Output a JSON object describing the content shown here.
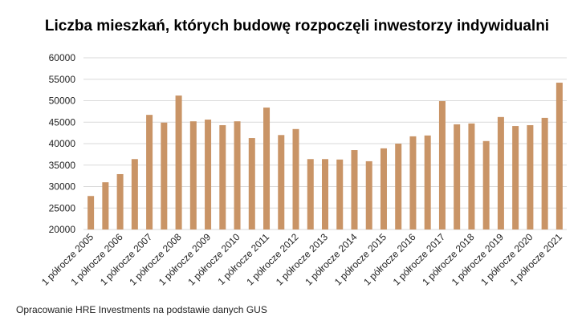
{
  "chart_data": {
    "type": "bar",
    "title": "Liczba mieszkań, których budowę rozpoczęli inwestorzy indywidualni",
    "source": "Opracowanie HRE Investments na podstawie danych GUS",
    "categories": [
      "1 półrocze 2005",
      null,
      "1 półrocze 2006",
      null,
      "1 półrocze 2007",
      null,
      "1 półrocze 2008",
      null,
      "1 półrocze 2009",
      null,
      "1 półrocze 2010",
      null,
      "1 półrocze 2011",
      null,
      "1 półrocze 2012",
      null,
      "1 półrocze 2013",
      null,
      "1 półrocze 2014",
      null,
      "1 półrocze 2015",
      null,
      "1 półrocze 2016",
      null,
      "1 półrocze 2017",
      null,
      "1 półrocze 2018",
      null,
      "1 półrocze 2019",
      null,
      "1 półrocze 2020",
      null,
      "1 półrocze 2021"
    ],
    "values": [
      27800,
      31000,
      32900,
      36400,
      46700,
      44900,
      51200,
      45200,
      45600,
      44300,
      45200,
      41300,
      48400,
      42000,
      43400,
      36400,
      36400,
      36300,
      38500,
      35900,
      38900,
      40000,
      41700,
      41900,
      49900,
      44500,
      44700,
      40600,
      46200,
      44100,
      44300,
      46000,
      54200
    ],
    "color": "#c99466",
    "ylim": [
      20000,
      60000
    ],
    "yticks": [
      20000,
      25000,
      30000,
      35000,
      40000,
      45000,
      50000,
      55000,
      60000
    ],
    "grid": true
  }
}
